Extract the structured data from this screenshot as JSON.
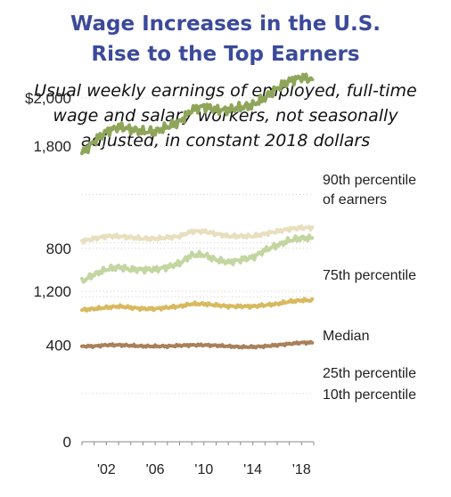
{
  "title_line1": "Wage Increases in the U.S.",
  "title_line2": "Rise to the Top Earners",
  "subtitle_line1": "Usual weekly earnings of employed, full-time",
  "subtitle_line2": "wage and salary workers, not seasonally",
  "subtitle_line3": "adjusted, in constant 2018 dollars",
  "chart_data": {
    "type": "line",
    "title": "Wage Increases in the U.S. Rise to the Top Earners",
    "subtitle": "Usual weekly earnings of employed, full-time wage and salary workers, not seasonally adjusted, in constant 2018 dollars",
    "y_axis_note": "broken axis: lower panel 0–800 at $200 per gridline, upper panel 1,200–2,000 at $200 per gridline",
    "ylim": [
      0,
      2000
    ],
    "y_tick_labels": [
      "0",
      "400",
      "800",
      "1,200",
      "1,800",
      "$2,000"
    ],
    "x_tick_labels": [
      "'02",
      "'06",
      "'10",
      "'14",
      "'18"
    ],
    "x_ticks": [
      2002,
      2006,
      2010,
      2014,
      2018
    ],
    "xlim": [
      2000,
      2019
    ],
    "series": [
      {
        "name": "90th percentile of earners",
        "color": "#8fa65a",
        "x": [
          2000,
          2001,
          2002,
          2003,
          2004,
          2005,
          2006,
          2007,
          2008,
          2009,
          2010,
          2011,
          2012,
          2013,
          2014,
          2015,
          2016,
          2017,
          2018,
          2018.9
        ],
        "values": [
          1770,
          1820,
          1860,
          1880,
          1870,
          1860,
          1860,
          1880,
          1900,
          1950,
          1965,
          1950,
          1950,
          1960,
          1970,
          2000,
          2040,
          2070,
          2085,
          2075
        ]
      },
      {
        "name": "75th percentile",
        "color": "#c3d6a1",
        "x": [
          2000,
          2001,
          2002,
          2003,
          2004,
          2005,
          2006,
          2007,
          2008,
          2009,
          2010,
          2011,
          2012,
          2013,
          2014,
          2015,
          2016,
          2017,
          2018,
          2018.9
        ],
        "values": [
          1240,
          1270,
          1290,
          1300,
          1290,
          1290,
          1290,
          1300,
          1315,
          1350,
          1350,
          1330,
          1320,
          1330,
          1340,
          1370,
          1390,
          1410,
          1420,
          1420
        ]
      },
      {
        "name": "Median",
        "color": "#e8dfbe",
        "x": [
          2000,
          2001,
          2002,
          2003,
          2004,
          2005,
          2006,
          2007,
          2008,
          2009,
          2010,
          2011,
          2012,
          2013,
          2014,
          2015,
          2016,
          2017,
          2018,
          2018.9
        ],
        "values": [
          830,
          840,
          850,
          850,
          845,
          840,
          840,
          845,
          850,
          870,
          870,
          860,
          850,
          850,
          850,
          860,
          870,
          880,
          885,
          885
        ]
      },
      {
        "name": "25th percentile",
        "color": "#d8b95f",
        "x": [
          2000,
          2001,
          2002,
          2003,
          2004,
          2005,
          2006,
          2007,
          2008,
          2009,
          2010,
          2011,
          2012,
          2013,
          2014,
          2015,
          2016,
          2017,
          2018,
          2018.9
        ],
        "values": [
          545,
          550,
          555,
          560,
          555,
          550,
          550,
          555,
          560,
          570,
          570,
          565,
          560,
          560,
          560,
          565,
          570,
          580,
          585,
          585
        ]
      },
      {
        "name": "10th percentile",
        "color": "#a8805a",
        "x": [
          2000,
          2001,
          2002,
          2003,
          2004,
          2005,
          2006,
          2007,
          2008,
          2009,
          2010,
          2011,
          2012,
          2013,
          2014,
          2015,
          2016,
          2017,
          2018,
          2018.9
        ],
        "values": [
          395,
          395,
          400,
          400,
          398,
          395,
          395,
          395,
          398,
          400,
          400,
          398,
          395,
          392,
          392,
          395,
          400,
          405,
          410,
          410
        ]
      }
    ],
    "series_labels": [
      {
        "lines": [
          "90th percentile",
          "of earners"
        ]
      },
      {
        "lines": [
          "75th percentile"
        ]
      },
      {
        "lines": [
          "Median"
        ]
      },
      {
        "lines": [
          "25th percentile"
        ]
      },
      {
        "lines": [
          "10th percentile"
        ]
      }
    ],
    "grid": true,
    "legend": "direct labels at right"
  }
}
